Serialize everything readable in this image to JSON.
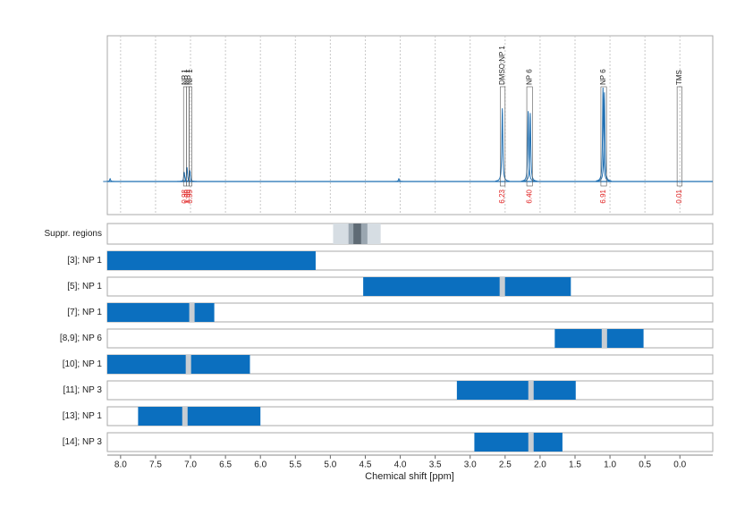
{
  "chart_data": {
    "type": "nmr",
    "xlabel": "Chemical shift [ppm]",
    "xlim": [
      8.19,
      -0.47
    ],
    "xticks": [
      {
        "value": 8,
        "label": "8.0"
      },
      7.5,
      {
        "value": 7,
        "label": "7.0"
      },
      6.5,
      {
        "value": 6,
        "label": "6.0"
      },
      5.5,
      {
        "value": 5,
        "label": "5.0"
      },
      4.5,
      {
        "value": 4,
        "label": "4.0"
      },
      3.5,
      {
        "value": 3,
        "label": "3.0"
      },
      2.5,
      {
        "value": 2,
        "label": "2.0"
      },
      1.5,
      {
        "value": 1,
        "label": "1.0"
      },
      0.5,
      {
        "value": 0,
        "label": "0.0"
      }
    ],
    "grid": true,
    "spectrum_color": "#1f6fb2",
    "peaks": {
      "x": [
        8.15,
        7.09,
        7.05,
        7.01,
        4.02,
        2.54,
        2.17,
        2.14,
        1.1,
        1.08
      ],
      "values": [
        0.03,
        0.1,
        0.15,
        0.12,
        0.03,
        0.78,
        0.75,
        0.73,
        1.0,
        0.95
      ]
    },
    "annotations": [
      {
        "label": "NP 1",
        "range": [
          7.1,
          7.06
        ],
        "integral": 0.98,
        "integral_label": "0.98"
      },
      {
        "label": "NP 1",
        "range": [
          7.06,
          7.02
        ],
        "integral": 1,
        "integral_label": "1.00"
      },
      {
        "label": "NP 1",
        "range": [
          7.02,
          6.98
        ],
        "integral": 0.99,
        "integral_label": "0.99"
      },
      {
        "label": "DMSO;NP 1",
        "range": [
          2.57,
          2.5
        ],
        "integral": 6.23,
        "integral_label": "6.23"
      },
      {
        "label": "NP 6",
        "range": [
          2.19,
          2.11
        ],
        "integral": 6.4,
        "integral_label": "6.40"
      },
      {
        "label": "NP 6",
        "range": [
          1.13,
          1.05
        ],
        "integral": 6.91,
        "integral_label": "6.91"
      },
      {
        "label": "TMS",
        "range": [
          0.04,
          -0.03
        ],
        "integral": 0.01,
        "integral_label": "0.01"
      }
    ],
    "suppression": {
      "label": "Suppr. regions",
      "bands": [
        {
          "range": [
            4.96,
            4.28
          ],
          "color": "#d6dde3"
        },
        {
          "range": [
            4.74,
            4.47
          ],
          "color": "#9aa6b0"
        },
        {
          "range": [
            4.67,
            4.56
          ],
          "color": "#5f6b75"
        }
      ]
    },
    "bar_color": "#0b6fbf",
    "marker_color": "#c8cdd2",
    "rows": [
      {
        "label": "[3]; NP 1",
        "range": [
          8.19,
          5.21
        ],
        "markers": []
      },
      {
        "label": "[5]; NP 1",
        "range": [
          4.53,
          1.56
        ],
        "markers": [
          2.54
        ]
      },
      {
        "label": "[7]; NP 1",
        "range": [
          8.19,
          6.66
        ],
        "markers": [
          6.98
        ]
      },
      {
        "label": "[8,9]; NP 6",
        "range": [
          1.79,
          0.52
        ],
        "markers": [
          1.08
        ]
      },
      {
        "label": "[10]; NP 1",
        "range": [
          8.19,
          6.15
        ],
        "markers": [
          7.03
        ]
      },
      {
        "label": "[11]; NP 3",
        "range": [
          3.19,
          1.49
        ],
        "markers": [
          2.13
        ]
      },
      {
        "label": "[13]; NP 1",
        "range": [
          7.75,
          6.0
        ],
        "markers": [
          7.08
        ]
      },
      {
        "label": "[14]; NP 3",
        "range": [
          2.94,
          1.68
        ],
        "markers": [
          2.13
        ]
      }
    ]
  }
}
